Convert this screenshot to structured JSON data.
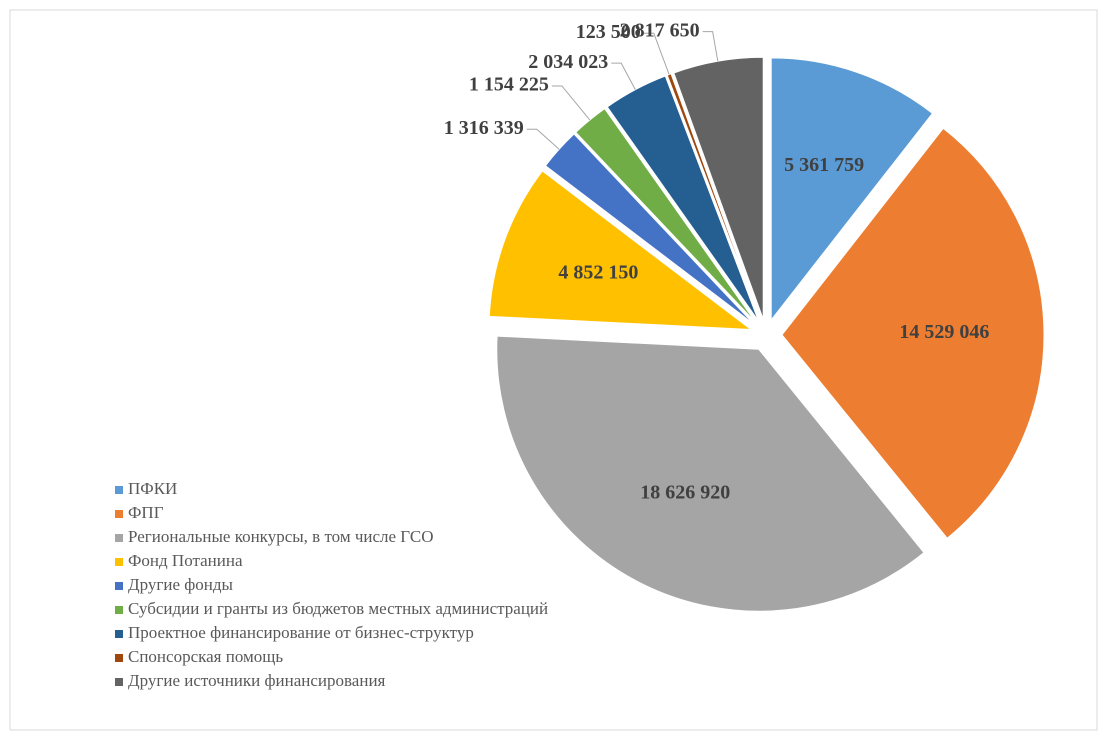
{
  "chart_data": {
    "type": "pie",
    "categories": [
      "ПФКИ",
      "ФПГ",
      "Региональные конкурсы, в том числе ГСО",
      "Фонд Потанина",
      "Другие фонды",
      "Субсидии и гранты из бюджетов местных администраций",
      "Проектное финансирование от бизнес-структур",
      "Спонсорская помощь",
      "Другие источники финансирования"
    ],
    "values": [
      5361759,
      14529046,
      18626920,
      4852150,
      1316339,
      1154225,
      2034023,
      123500,
      2817650
    ],
    "value_labels": [
      "5 361 759",
      "14 529 046",
      "18 626 920",
      "4 852 150",
      "1 316 339",
      "1 154 225",
      "2 034 023",
      "123 500",
      "2 817 650"
    ],
    "colors": [
      "#5b9bd5",
      "#ed7d31",
      "#a5a5a5",
      "#ffc000",
      "#4472c4",
      "#70ad47",
      "#255e91",
      "#9e480e",
      "#636363"
    ],
    "legend": "bottom-left"
  }
}
